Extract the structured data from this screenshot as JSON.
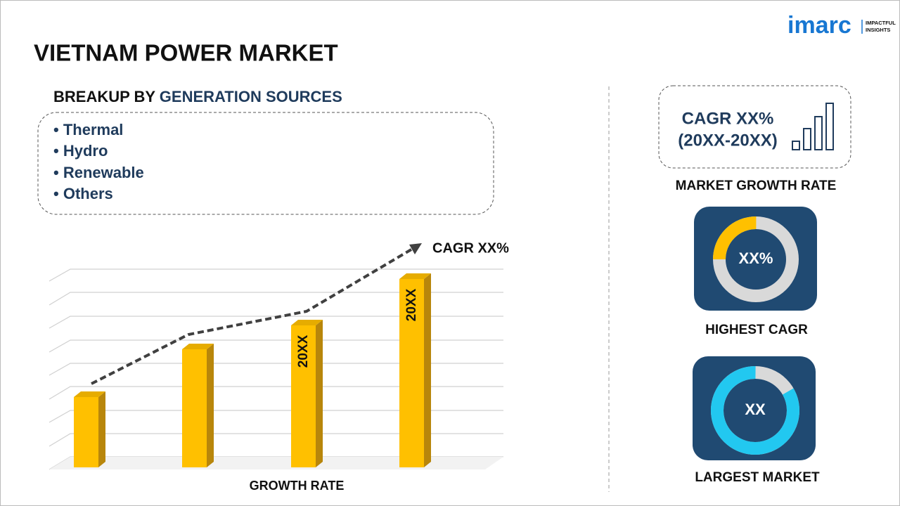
{
  "header": {
    "title": "VIETNAM POWER MARKET",
    "logo": {
      "name": "imarc",
      "tagline": [
        "IMPACTFUL",
        "INSIGHTS"
      ]
    }
  },
  "breakup": {
    "heading": "BREAKUP BY",
    "highlight": "GENERATION SOURCES",
    "items": [
      "Thermal",
      "Hydro",
      "Renewable",
      "Others"
    ]
  },
  "growth_chart": {
    "annotation": "CAGR XX%",
    "bar_labels": [
      "20XX",
      "20XX"
    ],
    "axis_label": "GROWTH RATE"
  },
  "growth_rate": {
    "value": "CAGR XX%",
    "period": "(20XX-20XX)",
    "label": "MARKET GROWTH RATE"
  },
  "highest_cagr": {
    "value": "XX%",
    "label": "HIGHEST CAGR"
  },
  "largest_market": {
    "value": "XX",
    "label": "LARGEST MARKET"
  }
}
